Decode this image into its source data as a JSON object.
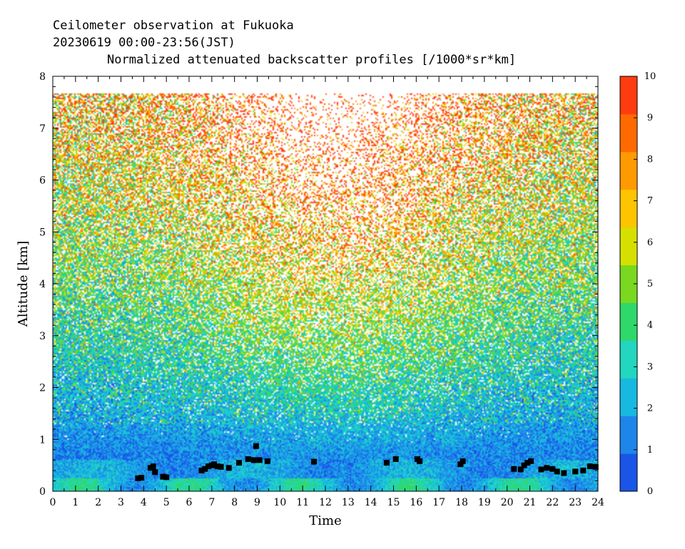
{
  "header": {
    "line1": "Ceilometer observation at Fukuoka",
    "line2": "20230619  00:00-23:56(JST)",
    "line3": "Normalized attenuated backscatter profiles [/1000*sr*km]"
  },
  "chart_data": {
    "type": "heatmap",
    "title": "Normalized attenuated backscatter profiles [/1000*sr*km]",
    "xlabel": "Time",
    "ylabel": "Altitude [km]",
    "xlim": [
      0,
      24
    ],
    "ylim": [
      0,
      8
    ],
    "x_ticks": [
      "0",
      "1",
      "2",
      "3",
      "4",
      "5",
      "6",
      "7",
      "8",
      "9",
      "10",
      "11",
      "12",
      "13",
      "14",
      "15",
      "16",
      "17",
      "18",
      "19",
      "20",
      "21",
      "22",
      "23",
      "24"
    ],
    "y_ticks": [
      "0",
      "1",
      "2",
      "3",
      "4",
      "5",
      "6",
      "7",
      "8"
    ],
    "colorbar": {
      "range": [
        0,
        10
      ],
      "ticks": [
        "0",
        "1",
        "2",
        "3",
        "4",
        "5",
        "6",
        "7",
        "8",
        "9",
        "10"
      ],
      "colors": [
        "#1a55e8",
        "#1e86ea",
        "#18b9e0",
        "#22d6c0",
        "#2fd86a",
        "#7ad820",
        "#d6e000",
        "#ffc400",
        "#ff9a00",
        "#ff6a00",
        "#ff3c10"
      ]
    },
    "data_top_altitude_km": 7.68,
    "cloud_base_markers": [
      {
        "t": 3.75,
        "h": 0.25
      },
      {
        "t": 3.9,
        "h": 0.26
      },
      {
        "t": 4.3,
        "h": 0.45
      },
      {
        "t": 4.42,
        "h": 0.48
      },
      {
        "t": 4.5,
        "h": 0.37
      },
      {
        "t": 4.85,
        "h": 0.28
      },
      {
        "t": 5.0,
        "h": 0.27
      },
      {
        "t": 6.55,
        "h": 0.4
      },
      {
        "t": 6.7,
        "h": 0.43
      },
      {
        "t": 6.85,
        "h": 0.48
      },
      {
        "t": 7.0,
        "h": 0.5
      },
      {
        "t": 7.1,
        "h": 0.52
      },
      {
        "t": 7.25,
        "h": 0.48
      },
      {
        "t": 7.4,
        "h": 0.47
      },
      {
        "t": 7.75,
        "h": 0.45
      },
      {
        "t": 8.2,
        "h": 0.55
      },
      {
        "t": 8.6,
        "h": 0.62
      },
      {
        "t": 8.85,
        "h": 0.6
      },
      {
        "t": 8.95,
        "h": 0.87
      },
      {
        "t": 9.1,
        "h": 0.6
      },
      {
        "t": 9.45,
        "h": 0.58
      },
      {
        "t": 11.5,
        "h": 0.57
      },
      {
        "t": 14.7,
        "h": 0.55
      },
      {
        "t": 15.1,
        "h": 0.62
      },
      {
        "t": 16.05,
        "h": 0.62
      },
      {
        "t": 16.15,
        "h": 0.58
      },
      {
        "t": 17.95,
        "h": 0.52
      },
      {
        "t": 18.05,
        "h": 0.58
      },
      {
        "t": 20.3,
        "h": 0.43
      },
      {
        "t": 20.6,
        "h": 0.42
      },
      {
        "t": 20.75,
        "h": 0.5
      },
      {
        "t": 20.9,
        "h": 0.55
      },
      {
        "t": 21.05,
        "h": 0.58
      },
      {
        "t": 21.5,
        "h": 0.42
      },
      {
        "t": 21.75,
        "h": 0.45
      },
      {
        "t": 22.0,
        "h": 0.43
      },
      {
        "t": 22.2,
        "h": 0.38
      },
      {
        "t": 22.5,
        "h": 0.35
      },
      {
        "t": 23.0,
        "h": 0.38
      },
      {
        "t": 23.35,
        "h": 0.4
      },
      {
        "t": 23.65,
        "h": 0.48
      },
      {
        "t": 23.9,
        "h": 0.47
      }
    ]
  }
}
